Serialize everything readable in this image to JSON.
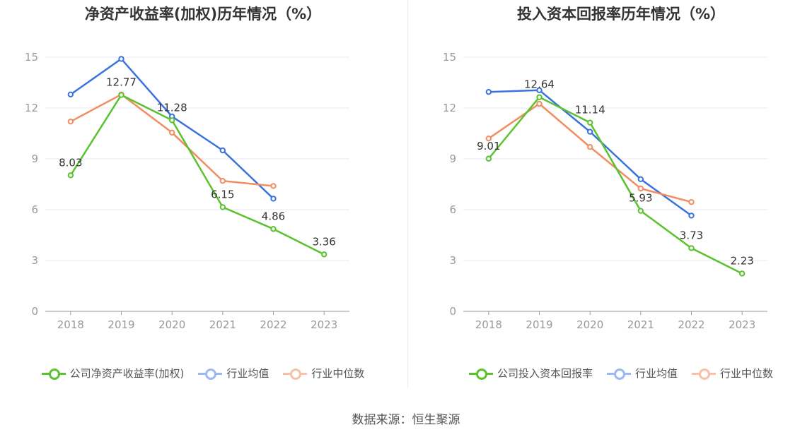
{
  "source_text": "数据来源：恒生聚源",
  "colors": {
    "company": "#5ac22e",
    "avg": "#3a72e0",
    "median": "#f28c62",
    "grid": "#e4e8f5",
    "axis": "#999999"
  },
  "chart_data": [
    {
      "type": "line",
      "title": "净资产收益率(加权)历年情况（%）",
      "categories": [
        "2018",
        "2019",
        "2020",
        "2021",
        "2022",
        "2023"
      ],
      "ylim": [
        0,
        15
      ],
      "yticks": [
        0,
        3,
        6,
        9,
        12,
        15
      ],
      "grid": true,
      "legend_position": "bottom",
      "series": [
        {
          "name": "公司净资产收益率(加权)",
          "values": [
            8.03,
            12.77,
            11.28,
            6.15,
            4.86,
            3.36
          ],
          "show_labels": true,
          "color_key": "company"
        },
        {
          "name": "行业均值",
          "values": [
            12.8,
            14.9,
            11.5,
            9.5,
            6.65,
            null
          ],
          "show_labels": false,
          "color_key": "avg"
        },
        {
          "name": "行业中位数",
          "values": [
            11.2,
            12.8,
            10.55,
            7.7,
            7.4,
            null
          ],
          "show_labels": false,
          "color_key": "median"
        }
      ]
    },
    {
      "type": "line",
      "title": "投入资本回报率历年情况（%）",
      "categories": [
        "2018",
        "2019",
        "2020",
        "2021",
        "2022",
        "2023"
      ],
      "ylim": [
        0,
        15
      ],
      "yticks": [
        0,
        3,
        6,
        9,
        12,
        15
      ],
      "grid": true,
      "legend_position": "bottom",
      "series": [
        {
          "name": "公司投入资本回报率",
          "values": [
            9.01,
            12.64,
            11.14,
            5.93,
            3.73,
            2.23
          ],
          "show_labels": true,
          "color_key": "company"
        },
        {
          "name": "行业均值",
          "values": [
            12.95,
            13.05,
            10.6,
            7.8,
            5.65,
            null
          ],
          "show_labels": false,
          "color_key": "avg"
        },
        {
          "name": "行业中位数",
          "values": [
            10.2,
            12.25,
            9.7,
            7.25,
            6.45,
            null
          ],
          "show_labels": false,
          "color_key": "median"
        }
      ]
    }
  ]
}
